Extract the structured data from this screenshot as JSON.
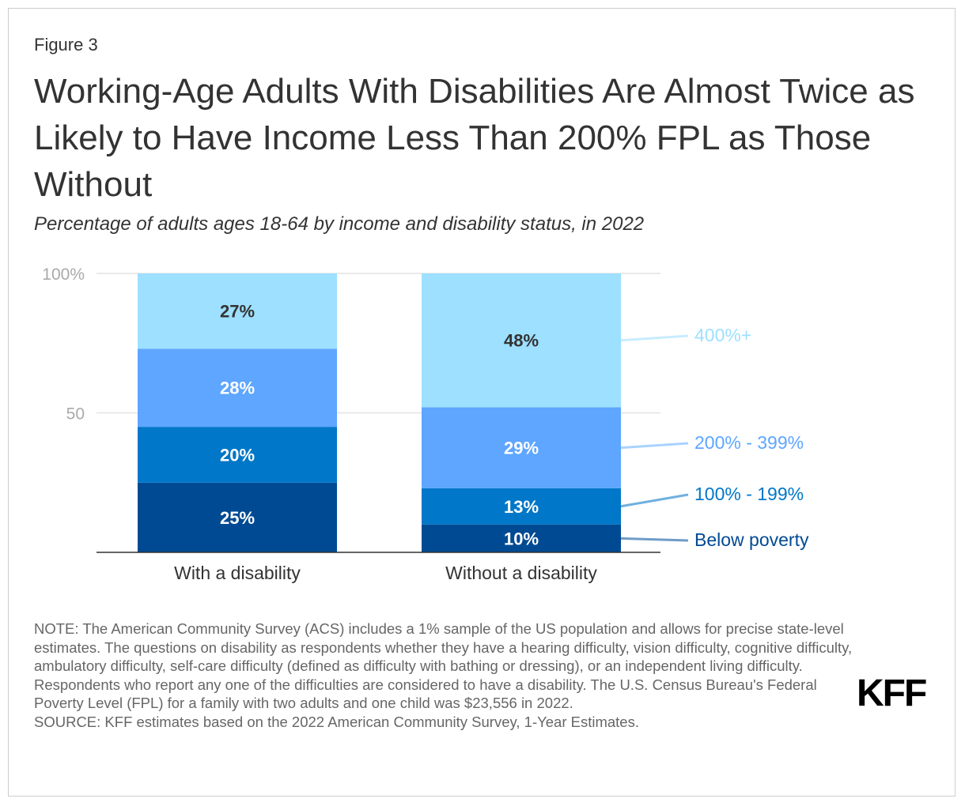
{
  "figure_label": "Figure 3",
  "title": "Working-Age Adults With Disabilities Are Almost Twice as Likely to Have Income Less Than 200% FPL as Those Without",
  "subtitle": "Percentage of adults ages 18-64 by income and disability status, in 2022",
  "chart_data": {
    "type": "bar",
    "stacked": true,
    "categories": [
      "With a disability",
      "Without a disability"
    ],
    "series": [
      {
        "name": "Below poverty",
        "values": [
          25,
          10
        ],
        "color": "#004a93"
      },
      {
        "name": "100% - 199%",
        "values": [
          20,
          13
        ],
        "color": "#0077c8"
      },
      {
        "name": "200% - 399%",
        "values": [
          28,
          29
        ],
        "color": "#5ea6ff"
      },
      {
        "name": "400%+",
        "values": [
          27,
          48
        ],
        "color": "#9de0ff"
      }
    ],
    "data_labels": [
      [
        "25%",
        "20%",
        "28%",
        "27%"
      ],
      [
        "10%",
        "13%",
        "29%",
        "48%"
      ]
    ],
    "ylim": [
      0,
      100
    ],
    "y_ticks": [
      50,
      100
    ],
    "y_tick_labels": [
      "50",
      "100%"
    ],
    "legend_placement": "right, labels attached to second bar",
    "grid": true
  },
  "colors": {
    "below_poverty": "#004a93",
    "range_100_199": "#0077c8",
    "range_200_399": "#5ea6ff",
    "range_400_plus": "#9de0ff",
    "legend_text_400": "#9de0ff",
    "legend_text_200": "#5ea6ff"
  },
  "notes": {
    "note": "NOTE: The American Community Survey (ACS) includes a 1% sample of the US population and allows for precise state-level estimates. The questions on disability as respondents whether they have a hearing difficulty, vision difficulty, cognitive difficulty, ambulatory difficulty, self-care difficulty (defined as difficulty with bathing or dressing), or an independent living difficulty. Respondents who report any one of the difficulties are considered to have a disability. The U.S. Census Bureau's Federal Poverty Level (FPL) for a family with two adults and one child was $23,556 in 2022.",
    "source": "SOURCE: KFF estimates based on the 2022 American Community Survey, 1-Year Estimates."
  },
  "logo": "KFF"
}
